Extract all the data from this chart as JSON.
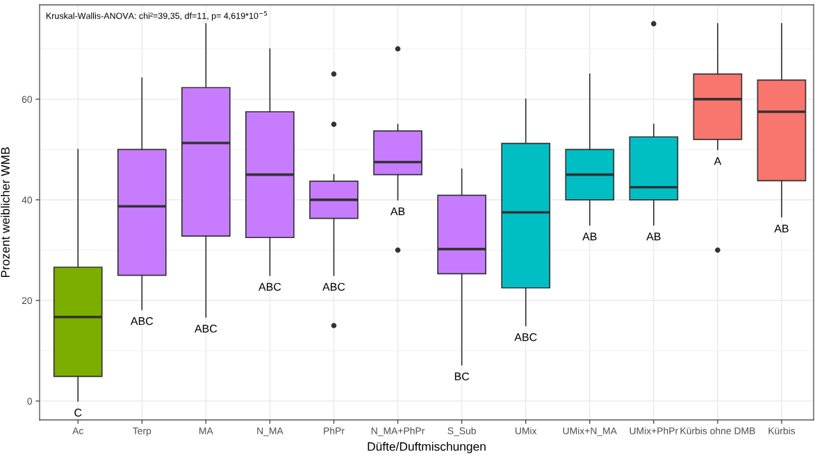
{
  "chart_data": {
    "type": "box",
    "xlabel": "Düfte/Duftmischungen",
    "ylabel": "Prozent weiblicher WMB",
    "categories": [
      "Ac",
      "Terp",
      "MA",
      "N_MA",
      "PhPr",
      "N_MA+PhPr",
      "S_Sub",
      "UMix",
      "UMix+N_MA",
      "UMix+PhPr",
      "Kürbis ohne DMB",
      "Kürbis"
    ],
    "colors": [
      "#7cae00",
      "#c77cff",
      "#c77cff",
      "#c77cff",
      "#c77cff",
      "#c77cff",
      "#c77cff",
      "#00bfc4",
      "#00bfc4",
      "#00bfc4",
      "#f8766d",
      "#f8766d"
    ],
    "boxes": [
      {
        "low": 0,
        "q1": 4.9,
        "median": 16.7,
        "q3": 26.6,
        "high": 50
      },
      {
        "low": 18.2,
        "q1": 25,
        "median": 38.7,
        "q3": 50,
        "high": 64.2
      },
      {
        "low": 16.7,
        "q1": 32.8,
        "median": 51.3,
        "q3": 62.3,
        "high": 75
      },
      {
        "low": 25,
        "q1": 32.5,
        "median": 45,
        "q3": 57.5,
        "high": 70
      },
      {
        "low": 25,
        "q1": 36.3,
        "median": 40,
        "q3": 43.7,
        "high": 45,
        "outliers": [
          65,
          55,
          15
        ]
      },
      {
        "low": 40,
        "q1": 45,
        "median": 47.5,
        "q3": 53.7,
        "high": 55,
        "outliers": [
          70,
          30
        ]
      },
      {
        "low": 7.2,
        "q1": 25.3,
        "median": 30.2,
        "q3": 40.9,
        "high": 46.1
      },
      {
        "low": 15,
        "q1": 22.5,
        "median": 37.5,
        "q3": 51.2,
        "high": 60
      },
      {
        "low": 35,
        "q1": 40,
        "median": 45,
        "q3": 50,
        "high": 65
      },
      {
        "low": 35,
        "q1": 40,
        "median": 42.5,
        "q3": 52.5,
        "high": 55,
        "outliers": [
          75
        ]
      },
      {
        "low": 50,
        "q1": 52,
        "median": 60,
        "q3": 65,
        "high": 75,
        "outliers": [
          30
        ]
      },
      {
        "low": 36.6,
        "q1": 43.8,
        "median": 57.5,
        "q3": 63.8,
        "high": 75
      }
    ],
    "ylim": [
      -3.75,
      78.75
    ],
    "yticks": [
      0,
      20,
      40,
      60
    ],
    "grid": true,
    "annotations": [
      "Kruskal-Wallis-ANOVA: chi²=39,35, df=11, p= 4,619*10$^{−5}$",
      "C",
      "ABC",
      "ABC",
      "ABC",
      "ABC",
      "AB",
      "BC",
      "ABC",
      "AB",
      "AB",
      "A",
      "AB"
    ]
  }
}
